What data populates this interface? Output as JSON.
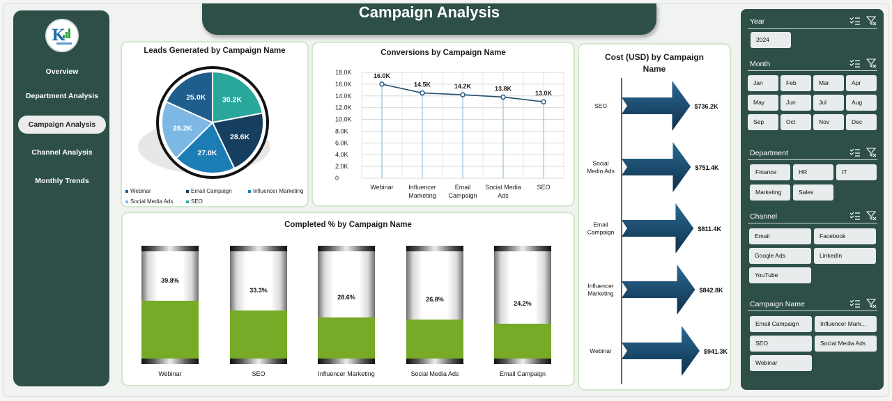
{
  "title": "Campaign Analysis",
  "nav": [
    {
      "label": "Overview"
    },
    {
      "label": "Department Analysis"
    },
    {
      "label": "Campaign Analysis"
    },
    {
      "label": "Channel Analysis"
    },
    {
      "label": "Monthly Trends"
    }
  ],
  "leads": {
    "title": "Leads Generated by Campaign Name",
    "legend": [
      "Webinar",
      "Email Campaign",
      "Influencer Marketing",
      "Social Media Ads",
      "SEO"
    ]
  },
  "conversions": {
    "title": "Conversions by Campaign Name"
  },
  "completed": {
    "title": "Completed % by Campaign Name"
  },
  "cost": {
    "title": "Cost (USD) by Campaign Name"
  },
  "filters": {
    "year": {
      "label": "Year",
      "items": [
        "2024"
      ]
    },
    "month": {
      "label": "Month",
      "items": [
        "Jan",
        "Feb",
        "Mar",
        "Apr",
        "May",
        "Jun",
        "Jul",
        "Aug",
        "Sep",
        "Oct",
        "Nov",
        "Dec"
      ]
    },
    "department": {
      "label": "Department",
      "items": [
        "Finance",
        "HR",
        "IT",
        "Marketing",
        "Sales"
      ]
    },
    "channel": {
      "label": "Channel",
      "items": [
        "Email",
        "Facebook",
        "Google Ads",
        "LinkedIn",
        "YouTube"
      ]
    },
    "campaign": {
      "label": "Campaign Name",
      "items": [
        "Email Campaign",
        "Influencer Mark...",
        "SEO",
        "Social Media Ads",
        "Webinar"
      ]
    }
  },
  "colors": {
    "accent": "#2d4f48",
    "green": "#76aa27",
    "navy": "#163e5e"
  },
  "chart_data": [
    {
      "type": "pie",
      "title": "Leads Generated by Campaign Name",
      "categories": [
        "SEO",
        "Email Campaign",
        "Influencer Marketing",
        "Social Media Ads",
        "Webinar"
      ],
      "values": [
        30200,
        28600,
        27000,
        26200,
        25000
      ],
      "labels": [
        "30.2K",
        "28.6K",
        "27.0K",
        "26.2K",
        "25.0K"
      ],
      "colors": [
        "#2aa79b",
        "#163e5e",
        "#1c7db5",
        "#7db8e5",
        "#1e5d8c"
      ],
      "legend_position": "bottom"
    },
    {
      "type": "line",
      "title": "Conversions by Campaign Name",
      "categories": [
        "Webinar",
        "Influencer Marketing",
        "Email Campaign",
        "Social Media Ads",
        "SEO"
      ],
      "category_labels": [
        [
          "Webinar"
        ],
        [
          "Influencer",
          "Marketing"
        ],
        [
          "Email",
          "Campaign"
        ],
        [
          "Social Media",
          "Ads"
        ],
        [
          "SEO"
        ]
      ],
      "values": [
        16000,
        14500,
        14200,
        13800,
        13000
      ],
      "labels": [
        "16.0K",
        "14.5K",
        "14.2K",
        "13.8K",
        "13.0K"
      ],
      "ylim": [
        0,
        18000
      ],
      "yticks": [
        "0",
        "2.0K",
        "4.0K",
        "6.0K",
        "8.0K",
        "10.0K",
        "12.0K",
        "14.0K",
        "16.0K",
        "18.0K"
      ],
      "grid": true
    },
    {
      "type": "bar",
      "title": "Completed % by Campaign Name",
      "categories": [
        "Webinar",
        "SEO",
        "Influencer Marketing",
        "Social Media Ads",
        "Email Campaign"
      ],
      "values": [
        39.8,
        33.3,
        28.6,
        26.8,
        24.2
      ],
      "labels": [
        "39.8%",
        "33.3%",
        "28.6%",
        "26.8%",
        "24.2%"
      ],
      "ylim": [
        0,
        100
      ]
    },
    {
      "type": "bar",
      "title": "Cost (USD) by Campaign Name",
      "orientation": "horizontal",
      "categories": [
        "SEO",
        "Social Media Ads",
        "Email Campaign",
        "Influencer Marketing",
        "Webinar"
      ],
      "category_labels": [
        [
          "SEO"
        ],
        [
          "Social",
          "Media Ads"
        ],
        [
          "Email",
          "Campaign"
        ],
        [
          "Influencer",
          "Marketing"
        ],
        [
          "Webinar"
        ]
      ],
      "values": [
        736200,
        751400,
        811400,
        842800,
        941300
      ],
      "labels": [
        "$736.2K",
        "$751.4K",
        "$811.4K",
        "$842.8K",
        "$941.3K"
      ]
    }
  ]
}
